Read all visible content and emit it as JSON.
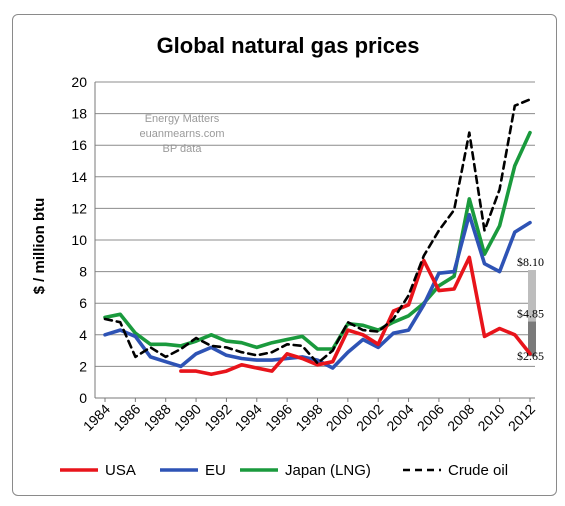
{
  "chart_data": {
    "type": "line",
    "title": "Global natural gas prices",
    "xlabel": "",
    "ylabel": "$ / million btu",
    "ylim": [
      0,
      20
    ],
    "yticks": [
      0,
      2,
      4,
      6,
      8,
      10,
      12,
      14,
      16,
      18,
      20
    ],
    "xlim": [
      1984,
      2012
    ],
    "xticks": [
      1984,
      1986,
      1988,
      1990,
      1992,
      1994,
      1996,
      1998,
      2000,
      2002,
      2004,
      2006,
      2008,
      2010,
      2012
    ],
    "grid": true,
    "legend": "bottom",
    "watermark": [
      "Energy Matters",
      "euanmearns.com",
      "BP data"
    ],
    "series": [
      {
        "name": "USA",
        "color": "#e8141b",
        "dash": "solid",
        "x": [
          1989,
          1990,
          1991,
          1992,
          1993,
          1994,
          1995,
          1996,
          1997,
          1998,
          1999,
          2000,
          2001,
          2002,
          2003,
          2004,
          2005,
          2006,
          2007,
          2008,
          2009,
          2010,
          2011,
          2012
        ],
        "y": [
          1.7,
          1.7,
          1.5,
          1.7,
          2.1,
          1.9,
          1.7,
          2.8,
          2.5,
          2.1,
          2.3,
          4.3,
          4.0,
          3.4,
          5.5,
          5.9,
          8.7,
          6.8,
          6.9,
          8.9,
          3.9,
          4.4,
          4.0,
          2.8
        ]
      },
      {
        "name": "EU",
        "color": "#2e53b5",
        "dash": "solid",
        "x": [
          1984,
          1985,
          1986,
          1987,
          1988,
          1989,
          1990,
          1991,
          1992,
          1993,
          1994,
          1995,
          1996,
          1997,
          1998,
          1999,
          2000,
          2001,
          2002,
          2003,
          2004,
          2005,
          2006,
          2007,
          2008,
          2009,
          2010,
          2011,
          2012
        ],
        "y": [
          4.0,
          4.3,
          3.9,
          2.6,
          2.3,
          2.0,
          2.8,
          3.2,
          2.7,
          2.5,
          2.4,
          2.4,
          2.5,
          2.6,
          2.4,
          1.9,
          2.9,
          3.7,
          3.2,
          4.1,
          4.3,
          5.9,
          7.9,
          8.0,
          11.6,
          8.5,
          8.0,
          10.5,
          11.1
        ]
      },
      {
        "name": "Japan (LNG)",
        "color": "#1a9a3d",
        "dash": "solid",
        "x": [
          1984,
          1985,
          1986,
          1987,
          1988,
          1989,
          1990,
          1991,
          1992,
          1993,
          1994,
          1995,
          1996,
          1997,
          1998,
          1999,
          2000,
          2001,
          2002,
          2003,
          2004,
          2005,
          2006,
          2007,
          2008,
          2009,
          2010,
          2011,
          2012
        ],
        "y": [
          5.1,
          5.3,
          4.1,
          3.4,
          3.4,
          3.3,
          3.6,
          4.0,
          3.6,
          3.5,
          3.2,
          3.5,
          3.7,
          3.9,
          3.1,
          3.1,
          4.7,
          4.6,
          4.3,
          4.8,
          5.2,
          6.0,
          7.1,
          7.7,
          12.6,
          9.1,
          10.9,
          14.7,
          16.8
        ]
      },
      {
        "name": "Crude oil",
        "color": "#000000",
        "dash": "dashed",
        "x": [
          1984,
          1985,
          1986,
          1987,
          1988,
          1989,
          1990,
          1991,
          1992,
          1993,
          1994,
          1995,
          1996,
          1997,
          1998,
          1999,
          2000,
          2001,
          2002,
          2003,
          2004,
          2005,
          2006,
          2007,
          2008,
          2009,
          2010,
          2011,
          2012
        ],
        "y": [
          5.0,
          4.8,
          2.6,
          3.2,
          2.6,
          3.1,
          3.8,
          3.3,
          3.2,
          2.9,
          2.7,
          2.9,
          3.4,
          3.3,
          2.2,
          3.0,
          4.8,
          4.3,
          4.2,
          5.0,
          6.5,
          9.0,
          10.6,
          11.9,
          16.8,
          10.6,
          13.2,
          18.5,
          18.9
        ]
      }
    ],
    "annotations": [
      {
        "label": "$8.10",
        "value": 8.1
      },
      {
        "label": "$4.85",
        "value": 4.85
      },
      {
        "label": "$2.65",
        "value": 2.65
      }
    ],
    "range_bars": [
      {
        "from": 2.65,
        "to": 4.85,
        "color": "#7a7a7a"
      },
      {
        "from": 4.85,
        "to": 8.1,
        "color": "#bdbdbd"
      }
    ]
  }
}
